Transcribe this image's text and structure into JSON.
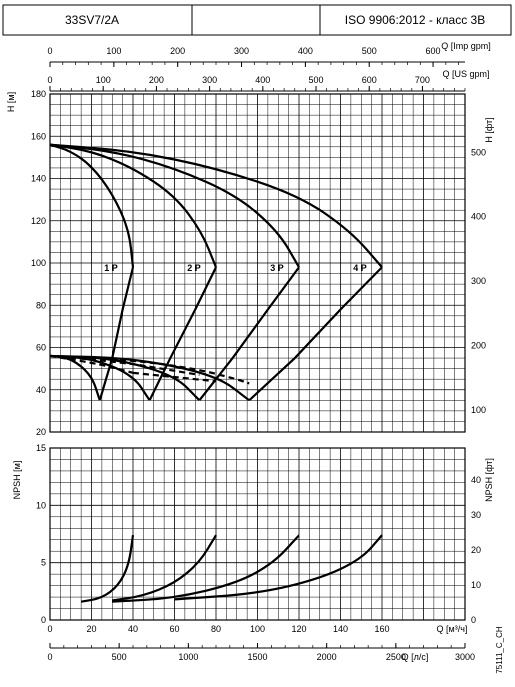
{
  "header": {
    "model": "33SV7/2A",
    "standard": "ISO 9906:2012 - класс 3B"
  },
  "footer_code": "75111_C_CH",
  "chart_data": {
    "type": "line",
    "x_primary": {
      "label": "Q [м³/ч]",
      "range": [
        0,
        200
      ],
      "ticks": [
        0,
        20,
        40,
        60,
        80,
        100,
        120,
        140,
        160
      ]
    },
    "x_lps": {
      "label": "Q [л/с]",
      "range": [
        0,
        3000
      ],
      "ticks": [
        0,
        500,
        1000,
        1500,
        2000,
        2500,
        3000
      ]
    },
    "x_impgpm": {
      "label": "Q [Imp gpm]",
      "range": [
        0,
        650
      ],
      "ticks": [
        0,
        100,
        200,
        300,
        400,
        500,
        600
      ]
    },
    "x_usgpm": {
      "label": "Q [US gpm]",
      "range": [
        0,
        780
      ],
      "ticks": [
        0,
        100,
        200,
        300,
        400,
        500,
        600,
        700
      ]
    },
    "head": {
      "y_label": "H [м]",
      "y_ticks": [
        20,
        40,
        60,
        80,
        100,
        120,
        140,
        160,
        180
      ],
      "ylim": [
        20,
        180
      ],
      "y2_label": "H [фт]",
      "y2_ticks": [
        100,
        200,
        300,
        400,
        500
      ],
      "series": [
        {
          "name": "1 P",
          "H": [
            [
              0,
              156
            ],
            [
              10,
              153
            ],
            [
              20,
              146
            ],
            [
              30,
              133
            ],
            [
              38,
              116
            ],
            [
              40,
              98
            ]
          ],
          "eff": [
            [
              24,
              35
            ],
            [
              30,
              55
            ],
            [
              35,
              78
            ],
            [
              40,
              98
            ]
          ]
        },
        {
          "name": "2 P",
          "H": [
            [
              0,
              156
            ],
            [
              20,
              153
            ],
            [
              40,
              145
            ],
            [
              60,
              132
            ],
            [
              73,
              115
            ],
            [
              80,
              98
            ]
          ],
          "eff": [
            [
              48,
              35
            ],
            [
              58,
              55
            ],
            [
              70,
              78
            ],
            [
              80,
              98
            ]
          ]
        },
        {
          "name": "3 P",
          "H": [
            [
              0,
              156
            ],
            [
              30,
              153
            ],
            [
              60,
              145
            ],
            [
              90,
              132
            ],
            [
              110,
              115
            ],
            [
              120,
              98
            ]
          ],
          "eff": [
            [
              72,
              35
            ],
            [
              88,
              55
            ],
            [
              105,
              78
            ],
            [
              120,
              98
            ]
          ]
        },
        {
          "name": "4 P",
          "H": [
            [
              0,
              156
            ],
            [
              40,
              153
            ],
            [
              80,
              145
            ],
            [
              120,
              132
            ],
            [
              145,
              115
            ],
            [
              160,
              98
            ]
          ],
          "eff": [
            [
              96,
              35
            ],
            [
              118,
              55
            ],
            [
              140,
              78
            ],
            [
              160,
              98
            ]
          ]
        }
      ],
      "power_curves": [
        {
          "points": [
            [
              0,
              56
            ],
            [
              10,
              55
            ],
            [
              20,
              47
            ],
            [
              24,
              35
            ]
          ]
        },
        {
          "points": [
            [
              0,
              56
            ],
            [
              20,
              55
            ],
            [
              40,
              47
            ],
            [
              48,
              35
            ]
          ]
        },
        {
          "points": [
            [
              0,
              56
            ],
            [
              30,
              55
            ],
            [
              60,
              47
            ],
            [
              72,
              35
            ]
          ]
        },
        {
          "points": [
            [
              0,
              56
            ],
            [
              40,
              55
            ],
            [
              80,
              47
            ],
            [
              96,
              35
            ]
          ]
        }
      ],
      "dashed": [
        {
          "points": [
            [
              0,
              56
            ],
            [
              25,
              52
            ],
            [
              40,
              48
            ]
          ]
        },
        {
          "points": [
            [
              0,
              56
            ],
            [
              35,
              53
            ],
            [
              60,
              49
            ],
            [
              72,
              47
            ]
          ]
        },
        {
          "points": [
            [
              0,
              56
            ],
            [
              40,
              54
            ],
            [
              70,
              50
            ],
            [
              90,
              45
            ],
            [
              96,
              43
            ]
          ]
        },
        {
          "points": [
            [
              40,
              48
            ],
            [
              60,
              46
            ],
            [
              80,
              44
            ]
          ]
        }
      ]
    },
    "npsh": {
      "y_label": "NPSH [м]",
      "y_ticks": [
        0,
        5,
        10,
        15
      ],
      "ylim": [
        0,
        15
      ],
      "y2_label": "NPSH [фт]",
      "y2_ticks": [
        0,
        10,
        20,
        30,
        40
      ],
      "series": [
        {
          "name": "1 P",
          "points": [
            [
              15,
              1.6
            ],
            [
              25,
              1.9
            ],
            [
              33,
              3.0
            ],
            [
              38,
              4.8
            ],
            [
              40,
              7.4
            ]
          ]
        },
        {
          "name": "2 P",
          "points": [
            [
              30,
              1.7
            ],
            [
              45,
              2.1
            ],
            [
              60,
              3.2
            ],
            [
              72,
              5.0
            ],
            [
              80,
              7.4
            ]
          ]
        },
        {
          "name": "3 P",
          "points": [
            [
              30,
              1.6
            ],
            [
              60,
              1.9
            ],
            [
              90,
              3.2
            ],
            [
              108,
              5.0
            ],
            [
              120,
              7.4
            ]
          ]
        },
        {
          "name": "4 P",
          "points": [
            [
              60,
              1.8
            ],
            [
              100,
              2.3
            ],
            [
              130,
              3.6
            ],
            [
              150,
              5.3
            ],
            [
              160,
              7.4
            ]
          ]
        }
      ]
    }
  }
}
